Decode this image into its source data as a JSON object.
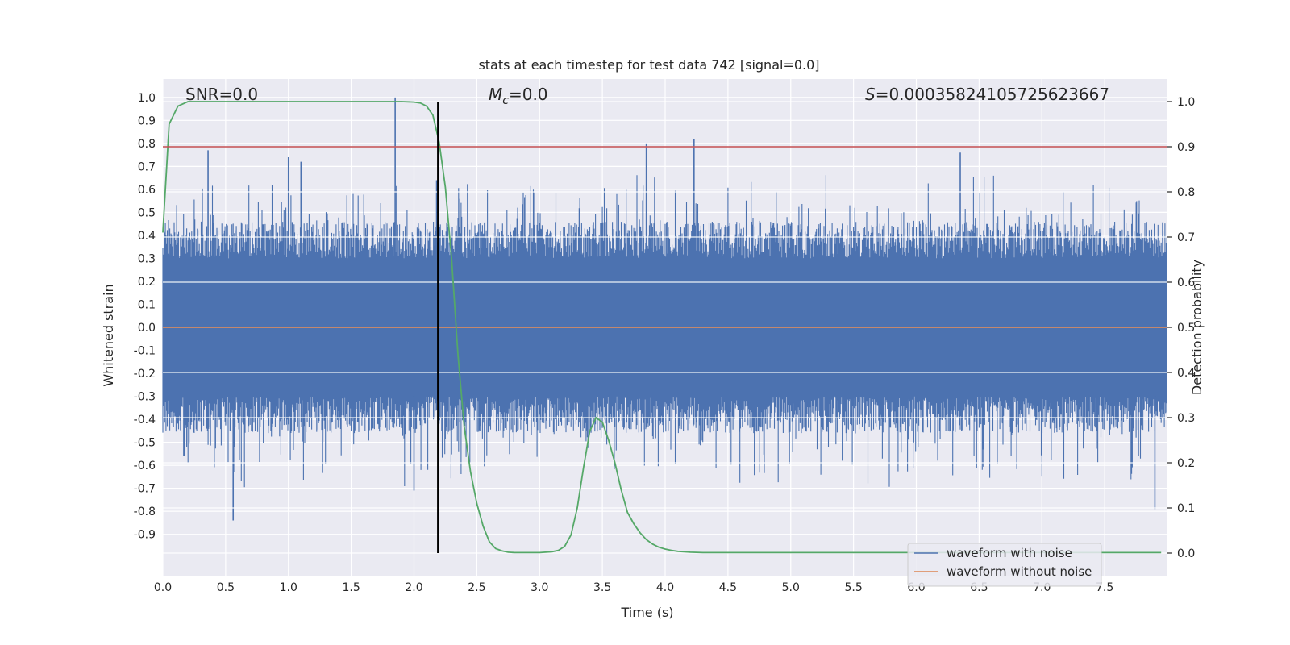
{
  "chart_data": {
    "type": "line",
    "title": "stats at each timestep for test data 742 [signal=0.0]",
    "xlabel": "Time (s)",
    "ylabel": "Whitened strain",
    "ylabel_right": "Detection probability",
    "xlim": [
      0.0,
      8.0
    ],
    "ylim": [
      -1.08,
      1.08
    ],
    "ylim_right": [
      -0.05,
      1.05
    ],
    "x_ticks": [
      "0.0",
      "0.5",
      "1.0",
      "1.5",
      "2.0",
      "2.5",
      "3.0",
      "3.5",
      "4.0",
      "4.5",
      "5.0",
      "5.5",
      "6.0",
      "6.5",
      "7.0",
      "7.5"
    ],
    "y_ticks": [
      "1.0",
      "0.9",
      "0.8",
      "0.7",
      "0.6",
      "0.5",
      "0.4",
      "0.3",
      "0.2",
      "0.1",
      "0.0",
      "-0.1",
      "-0.2",
      "-0.3",
      "-0.4",
      "-0.5",
      "-0.6",
      "-0.7",
      "-0.8",
      "-0.9"
    ],
    "y_ticks_right": [
      "1.0",
      "0.9",
      "0.8",
      "0.7",
      "0.6",
      "0.5",
      "0.4",
      "0.3",
      "0.2",
      "0.1",
      "0.0"
    ],
    "annotations": {
      "snr": "SNR=0.0",
      "mc_symbol": "M",
      "mc_subscript": "c",
      "mc_value": "=0.0",
      "s_symbol": "S",
      "s_value": "=0.00035824105725623667"
    },
    "legend": {
      "location": "lower-right",
      "entries": [
        "waveform with noise",
        "waveform without noise"
      ]
    },
    "colors": {
      "noisy": "#4c72b0",
      "clean": "#dd8452",
      "probability": "#55a868",
      "threshold": "#c44e52",
      "marker": "#000000",
      "background": "#eaeaf2"
    },
    "threshold_probability": 0.9,
    "marker_time": 2.19,
    "noisy_envelope": {
      "core_amplitude": 0.3,
      "spike_times": [
        0.36,
        0.56,
        1.0,
        1.1,
        1.85,
        2.0,
        2.18,
        3.85,
        4.23,
        6.35,
        7.0,
        7.9
      ],
      "spike_values": [
        0.77,
        -0.84,
        0.74,
        0.72,
        1.0,
        -0.71,
        0.64,
        0.8,
        0.82,
        0.76,
        -0.46,
        -0.79
      ]
    },
    "clean_series": {
      "x": [
        0.0,
        8.0
      ],
      "y": [
        0.0,
        0.0
      ]
    },
    "series": [
      {
        "name": "detection probability",
        "axis": "right",
        "x": [
          0.0,
          0.05,
          0.12,
          0.2,
          0.5,
          1.0,
          1.5,
          1.9,
          2.0,
          2.05,
          2.1,
          2.15,
          2.2,
          2.25,
          2.3,
          2.35,
          2.4,
          2.45,
          2.5,
          2.55,
          2.6,
          2.65,
          2.7,
          2.75,
          2.8,
          2.9,
          3.0,
          3.1,
          3.15,
          3.2,
          3.25,
          3.3,
          3.35,
          3.4,
          3.45,
          3.5,
          3.55,
          3.6,
          3.65,
          3.7,
          3.75,
          3.8,
          3.85,
          3.9,
          3.95,
          4.0,
          4.05,
          4.1,
          4.2,
          4.3,
          4.5,
          5.0,
          6.0,
          7.0,
          7.5,
          7.95
        ],
        "y": [
          0.71,
          0.95,
          0.99,
          1.0,
          1.0,
          1.0,
          1.0,
          1.0,
          0.999,
          0.997,
          0.99,
          0.97,
          0.91,
          0.81,
          0.65,
          0.44,
          0.28,
          0.18,
          0.11,
          0.06,
          0.025,
          0.01,
          0.005,
          0.002,
          0.001,
          0.001,
          0.001,
          0.003,
          0.006,
          0.015,
          0.04,
          0.1,
          0.19,
          0.27,
          0.3,
          0.29,
          0.25,
          0.2,
          0.14,
          0.09,
          0.065,
          0.045,
          0.03,
          0.02,
          0.013,
          0.009,
          0.006,
          0.004,
          0.002,
          0.001,
          0.001,
          0.001,
          0.001,
          0.001,
          0.001,
          0.001
        ]
      }
    ]
  }
}
